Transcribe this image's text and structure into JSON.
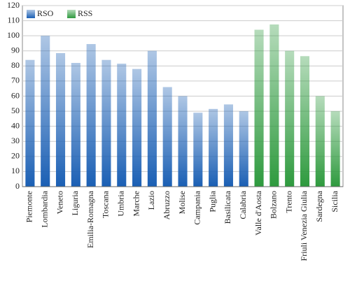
{
  "chart_data": {
    "type": "bar",
    "categories": [
      "Piemonte",
      "Lombardia",
      "Veneto",
      "Liguria",
      "Emilia-Romagna",
      "Toscana",
      "Umbria",
      "Marche",
      "Lazio",
      "Abruzzo",
      "Molise",
      "Campania",
      "Puglia",
      "Basilicata",
      "Calabria",
      "Valle d'Aosta",
      "Bolzano",
      "Trento",
      "Friuli Venezia Giulia",
      "Sardegna",
      "Sicilia"
    ],
    "series": [
      {
        "name": "RSO",
        "color": "#1a5fb4",
        "values": [
          84,
          100,
          88.5,
          82,
          94.5,
          84,
          81.5,
          78,
          90,
          66,
          60,
          49,
          51.5,
          54.5,
          50,
          null,
          null,
          null,
          null,
          null,
          null
        ]
      },
      {
        "name": "RSS",
        "color": "#2e9a3e",
        "values": [
          null,
          null,
          null,
          null,
          null,
          null,
          null,
          null,
          null,
          null,
          null,
          null,
          null,
          null,
          null,
          104,
          107.5,
          90,
          86.5,
          60,
          50
        ]
      }
    ],
    "ylim": [
      0,
      120
    ],
    "yticks": [
      0,
      10,
      20,
      30,
      40,
      50,
      60,
      70,
      80,
      90,
      100,
      110,
      120
    ],
    "grid": true,
    "legend": "top-left"
  }
}
